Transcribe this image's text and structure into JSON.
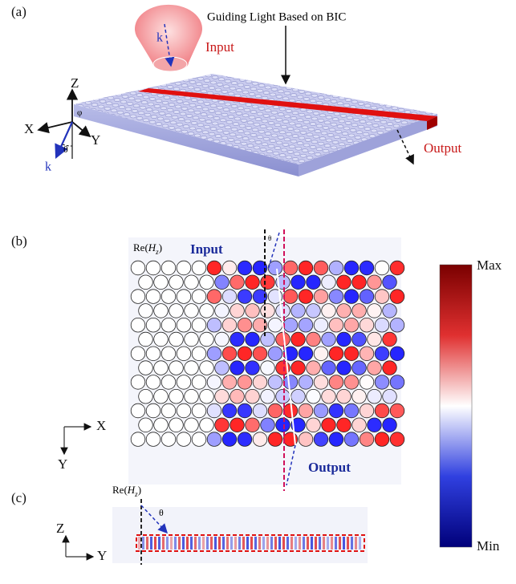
{
  "panel_a": {
    "label": "(a)",
    "title": "Guiding Light Based on BIC",
    "input": "Input",
    "output": "Output",
    "beam_k": "k",
    "axes": {
      "z": "Z",
      "x": "X",
      "y": "Y",
      "theta": "θ",
      "phi": "φ",
      "k": "k"
    }
  },
  "panel_b": {
    "label": "(b)",
    "field": {
      "prefix": "Re(",
      "symbol": "H",
      "subscript": "z",
      "suffix": ")"
    },
    "input": "Input",
    "output": "Output",
    "axes": {
      "x": "X",
      "y": "Y"
    },
    "angle": "θ"
  },
  "colorbar": {
    "max": "Max",
    "min": "Min"
  },
  "panel_c": {
    "label": "(c)",
    "field": {
      "prefix": "Re(",
      "symbol": "H",
      "subscript": "z",
      "suffix": ")"
    },
    "angle": "θ",
    "axes": {
      "z": "Z",
      "y": "Y"
    }
  }
}
